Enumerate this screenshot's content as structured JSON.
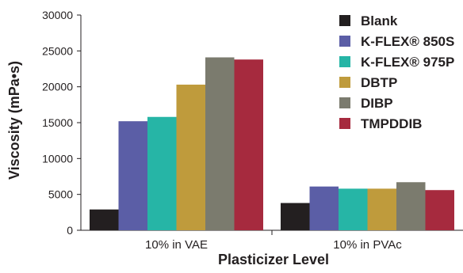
{
  "chart_data": {
    "type": "bar",
    "title": "",
    "xlabel": "Plasticizer Level",
    "ylabel": "Viscosity (mPa•s)",
    "ylim": [
      0,
      30000
    ],
    "yticks": [
      0,
      5000,
      10000,
      15000,
      20000,
      25000,
      30000
    ],
    "categories": [
      "10% in VAE",
      "10% in PVAc"
    ],
    "grid": false,
    "legend_position": "top-right",
    "series": [
      {
        "name": "Blank",
        "color": "#231f20",
        "values": [
          2900,
          3800
        ]
      },
      {
        "name": "K-FLEX® 850S",
        "color": "#5b5ea6",
        "values": [
          15200,
          6100
        ]
      },
      {
        "name": "K-FLEX® 975P",
        "color": "#26b5a6",
        "values": [
          15800,
          5800
        ]
      },
      {
        "name": "DBTP",
        "color": "#bf9b3c",
        "values": [
          20300,
          5800
        ]
      },
      {
        "name": "DIBP",
        "color": "#7b7b6e",
        "values": [
          24100,
          6700
        ]
      },
      {
        "name": "TMPDDIB",
        "color": "#a62a3e",
        "values": [
          23800,
          5600
        ]
      }
    ]
  }
}
